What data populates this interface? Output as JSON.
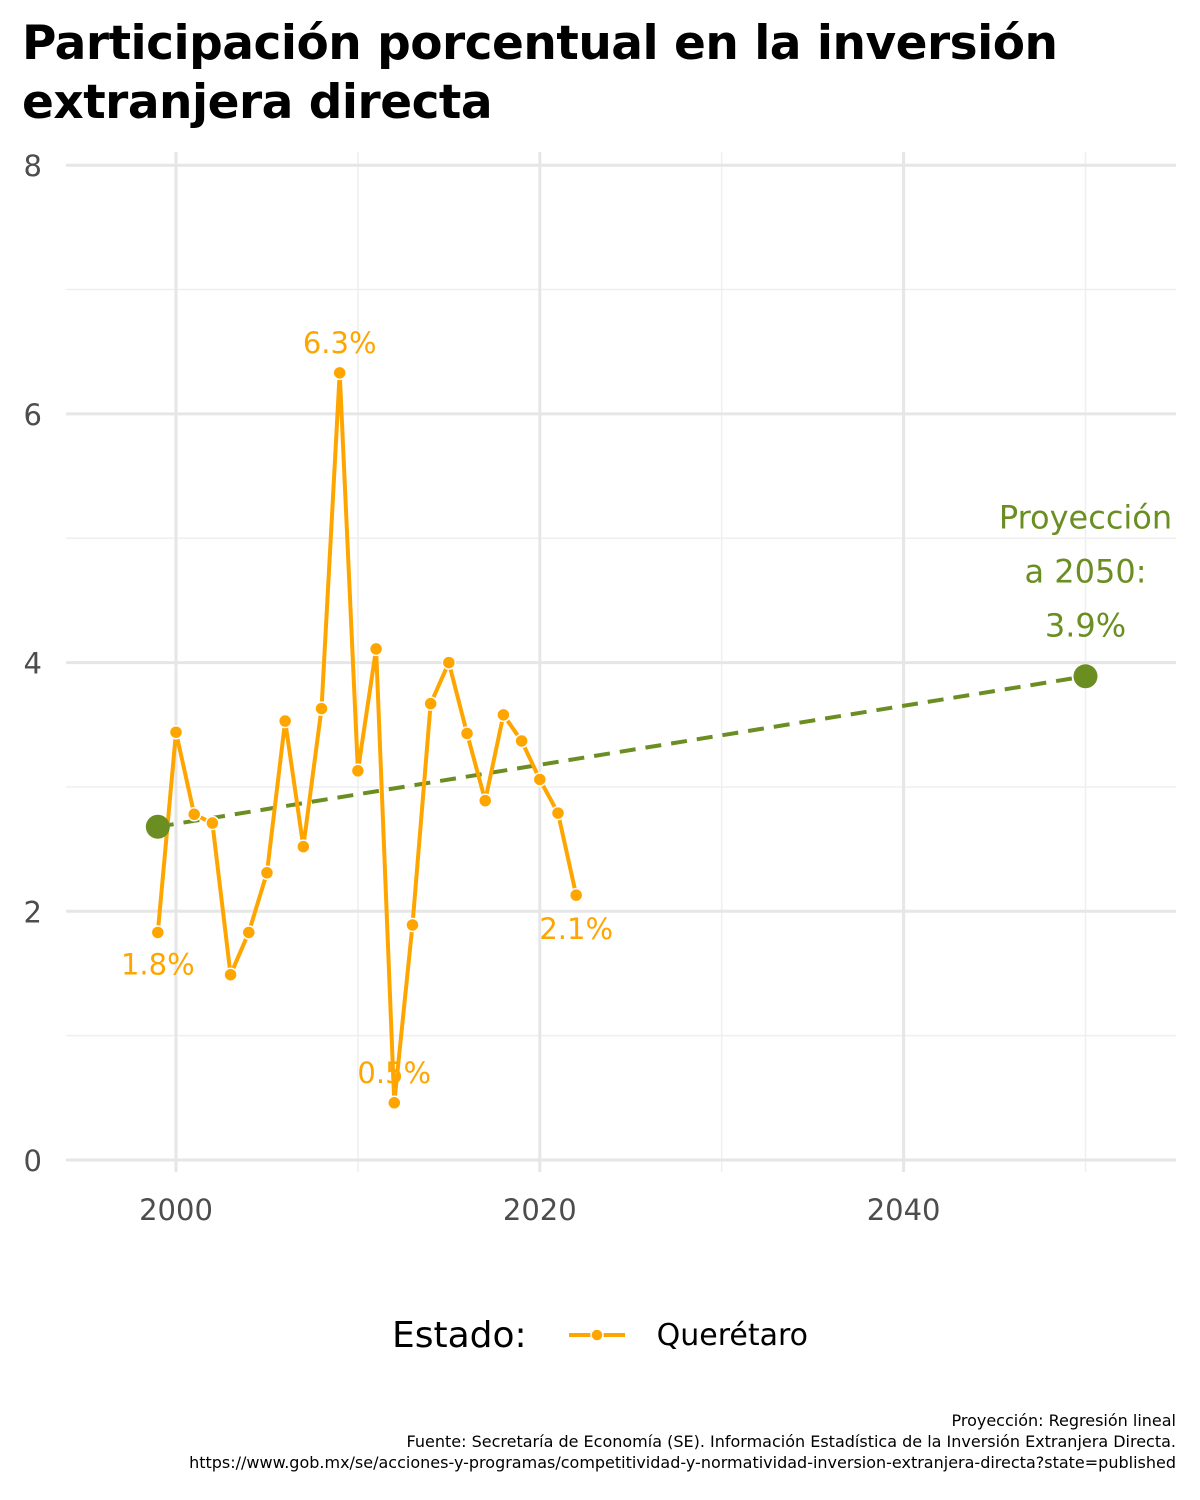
{
  "chart_data": {
    "type": "line",
    "title": "Participación porcentual en la inversión extranjera directa",
    "xlabel": "",
    "ylabel": "",
    "xlim": [
      1994,
      2055
    ],
    "ylim": [
      0,
      8
    ],
    "x_ticks": [
      2000,
      2020,
      2040
    ],
    "y_ticks": [
      0,
      2,
      4,
      6,
      8
    ],
    "grid": true,
    "legend": {
      "title": "Estado:",
      "position": "bottom"
    },
    "series": [
      {
        "name": "Querétaro",
        "color": "#FFA500",
        "x": [
          1999,
          2000,
          2001,
          2002,
          2003,
          2004,
          2005,
          2006,
          2007,
          2008,
          2009,
          2010,
          2011,
          2012,
          2013,
          2014,
          2015,
          2016,
          2017,
          2018,
          2019,
          2020,
          2021,
          2022
        ],
        "y": [
          1.83,
          3.44,
          2.78,
          2.71,
          1.49,
          1.83,
          2.31,
          3.53,
          2.52,
          3.63,
          6.33,
          3.13,
          4.11,
          0.46,
          1.89,
          3.67,
          4.0,
          3.43,
          2.89,
          3.58,
          3.37,
          3.06,
          2.79,
          2.13
        ]
      },
      {
        "name": "Proyección",
        "color": "#6B8E23",
        "style": "dashed",
        "x": [
          1999,
          2050
        ],
        "y": [
          2.68,
          3.89
        ]
      }
    ],
    "annotations": [
      {
        "text": "1.8%",
        "x": 1999,
        "y": 1.83,
        "color": "#FFA500"
      },
      {
        "text": "6.3%",
        "x": 2009,
        "y": 6.33,
        "color": "#FFA500"
      },
      {
        "text": "0.5%",
        "x": 2012,
        "y": 0.46,
        "color": "#FFA500"
      },
      {
        "text": "2.1%",
        "x": 2022,
        "y": 2.13,
        "color": "#FFA500"
      },
      {
        "lines": [
          "Proyección",
          "a 2050:",
          "3.9%"
        ],
        "x": 2050,
        "y": 3.89,
        "color": "#6B8E23"
      }
    ]
  },
  "caption": [
    "Proyección: Regresión lineal",
    "Fuente: Secretaría de Economía (SE). Información Estadística de la Inversión Extranjera Directa.",
    "https://www.gob.mx/se/acciones-y-programas/competitividad-y-normatividad-inversion-extranjera-directa?state=published"
  ]
}
